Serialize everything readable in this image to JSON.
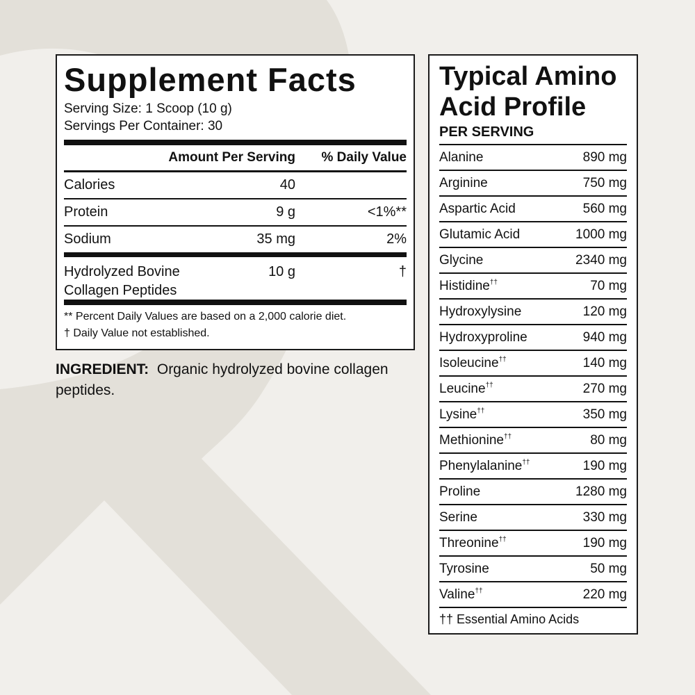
{
  "supplement_facts": {
    "title": "Supplement Facts",
    "serving_size": "Serving Size: 1 Scoop (10 g)",
    "servings_per_container": "Servings Per Container: 30",
    "col_amount": "Amount Per Serving",
    "col_dv": "% Daily Value",
    "rows": [
      {
        "name": "Calories",
        "amount": "40",
        "dv": ""
      },
      {
        "name": "Protein",
        "amount": "9 g",
        "dv": "<1%**"
      },
      {
        "name": "Sodium",
        "amount": "35 mg",
        "dv": "2%"
      },
      {
        "name": "Hydrolyzed Bovine Collagen Peptides",
        "amount": "10 g",
        "dv": "†"
      }
    ],
    "footnote_1": "** Percent Daily Values are based on a 2,000 calorie diet.",
    "footnote_2": "†  Daily Value not established."
  },
  "ingredient": {
    "label": "INGREDIENT:",
    "text": "Organic hydrolyzed bovine collagen peptides."
  },
  "amino_profile": {
    "title": "Typical Amino Acid Profile",
    "subtitle": "PER SERVING",
    "essential_mark": "††",
    "rows": [
      {
        "name": "Alanine",
        "amount": "890 mg",
        "essential": false
      },
      {
        "name": "Arginine",
        "amount": "750 mg",
        "essential": false
      },
      {
        "name": "Aspartic Acid",
        "amount": "560 mg",
        "essential": false
      },
      {
        "name": "Glutamic Acid",
        "amount": "1000 mg",
        "essential": false
      },
      {
        "name": "Glycine",
        "amount": "2340 mg",
        "essential": false
      },
      {
        "name": "Histidine",
        "amount": "70 mg",
        "essential": true
      },
      {
        "name": "Hydroxylysine",
        "amount": "120 mg",
        "essential": false
      },
      {
        "name": "Hydroxyproline",
        "amount": "940 mg",
        "essential": false
      },
      {
        "name": "Isoleucine",
        "amount": "140 mg",
        "essential": true
      },
      {
        "name": "Leucine",
        "amount": "270 mg",
        "essential": true
      },
      {
        "name": "Lysine",
        "amount": "350 mg",
        "essential": true
      },
      {
        "name": "Methionine",
        "amount": "80 mg",
        "essential": true
      },
      {
        "name": "Phenylalanine",
        "amount": "190 mg",
        "essential": true
      },
      {
        "name": "Proline",
        "amount": "1280 mg",
        "essential": false
      },
      {
        "name": "Serine",
        "amount": "330 mg",
        "essential": false
      },
      {
        "name": "Threonine",
        "amount": "190 mg",
        "essential": true
      },
      {
        "name": "Tyrosine",
        "amount": "50 mg",
        "essential": false
      },
      {
        "name": "Valine",
        "amount": "220 mg",
        "essential": true
      }
    ],
    "footnote": "†† Essential Amino Acids"
  },
  "colors": {
    "background": "#f1efeb",
    "watermark": "#e3e0d9",
    "text": "#111111"
  }
}
